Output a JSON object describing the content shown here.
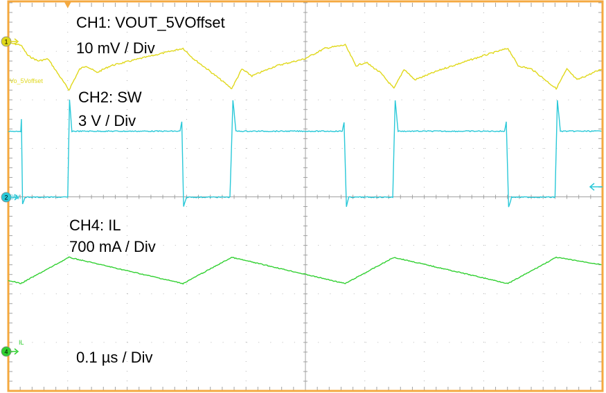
{
  "labels": {
    "ch1_name": "CH1: VOUT_5VOffset",
    "ch1_scale": "10 mV / Div",
    "ch2_name": "CH2: SW",
    "ch2_scale": "3 V / Div",
    "ch4_name": "CH4: IL",
    "ch4_scale": "700 mA / Div",
    "timebase": "0.1 µs / Div"
  },
  "markers": {
    "ch1": {
      "number": "1",
      "tag": "Vo_5Voffset"
    },
    "ch2": {
      "number": "2",
      "tag": "SW"
    },
    "ch4": {
      "number": "4",
      "tag": "IL"
    }
  },
  "colors": {
    "frame": "#f4a940",
    "grid": "#a0a0a0",
    "ch1": "#e0d81a",
    "ch2": "#28c8d8",
    "ch4": "#30d030"
  },
  "chart_data": {
    "type": "line",
    "x_unit": "µs",
    "xlim": [
      0,
      1.0
    ],
    "divisions": {
      "horizontal": 10,
      "vertical": 8
    },
    "grid": true,
    "series": [
      {
        "name": "CH1: VOUT_5VOffset",
        "color": "#e0d81a",
        "unit": "div",
        "t": [
          0,
          0.021,
          0.033,
          0.05,
          0.067,
          0.102,
          0.12,
          0.131,
          0.149,
          0.172,
          0.219,
          0.294,
          0.312,
          0.335,
          0.376,
          0.393,
          0.41,
          0.451,
          0.498,
          0.533,
          0.567,
          0.585,
          0.602,
          0.626,
          0.649,
          0.666,
          0.684,
          0.73,
          0.8,
          0.841,
          0.858,
          0.881,
          0.922,
          0.94,
          0.957,
          0.998
        ],
        "v": [
          -0.03,
          -0.07,
          -0.29,
          -0.4,
          -0.36,
          -1.0,
          -0.57,
          -0.5,
          -0.64,
          -0.5,
          -0.36,
          -0.14,
          -0.36,
          -0.57,
          -0.97,
          -0.57,
          -0.71,
          -0.5,
          -0.36,
          -0.14,
          -0.07,
          -0.5,
          -0.43,
          -0.64,
          -0.97,
          -0.57,
          -0.79,
          -0.57,
          -0.29,
          -0.14,
          -0.5,
          -0.57,
          -0.97,
          -0.57,
          -0.79,
          -0.57
        ]
      },
      {
        "name": "CH2: SW",
        "color": "#28c8d8",
        "unit": "div",
        "t": [
          0,
          0.021,
          0.022,
          0.024,
          0.028,
          0.1,
          0.103,
          0.107,
          0.289,
          0.292,
          0.295,
          0.3,
          0.373,
          0.378,
          0.383,
          0.562,
          0.565,
          0.569,
          0.573,
          0.647,
          0.651,
          0.656,
          0.835,
          0.838,
          0.842,
          0.847,
          0.92,
          0.924,
          0.929,
          0.998
        ],
        "v": [
          1.36,
          1.36,
          1.6,
          -0.15,
          0,
          0,
          2.0,
          1.36,
          1.36,
          1.55,
          -0.2,
          0,
          0,
          2.0,
          1.36,
          1.36,
          1.55,
          -0.2,
          0,
          0,
          2.0,
          1.36,
          1.36,
          1.55,
          -0.2,
          0,
          0,
          2.0,
          1.36,
          1.36
        ]
      },
      {
        "name": "CH4: IL",
        "color": "#30d030",
        "unit": "div",
        "t": [
          0,
          0.021,
          0.102,
          0.294,
          0.376,
          0.567,
          0.649,
          0.841,
          0.922,
          0.998
        ],
        "v": [
          1.47,
          1.4,
          1.94,
          1.4,
          1.94,
          1.4,
          1.94,
          1.4,
          1.94,
          1.79
        ]
      }
    ]
  }
}
